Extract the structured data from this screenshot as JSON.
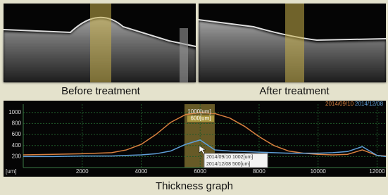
{
  "panels": [
    {
      "caption": "Before treatment"
    },
    {
      "caption": "After treatment"
    }
  ],
  "chart_data": {
    "type": "line",
    "title": "Thickness graph",
    "y_label": "[um]",
    "x": [
      0,
      1000,
      2000,
      3000,
      3500,
      4000,
      4500,
      5000,
      5500,
      6000,
      6500,
      7000,
      7500,
      8000,
      8500,
      9000,
      9500,
      10000,
      10500,
      11000,
      11500,
      12000,
      12300
    ],
    "series": [
      {
        "name": "2014/09/10",
        "color": "#d9803f",
        "values": [
          230,
          240,
          250,
          270,
          320,
          420,
          600,
          820,
          960,
          1000,
          980,
          900,
          750,
          560,
          400,
          300,
          260,
          240,
          230,
          240,
          320,
          220,
          210
        ]
      },
      {
        "name": "2014/12/08",
        "color": "#5f9fd8",
        "values": [
          200,
          200,
          210,
          210,
          220,
          230,
          250,
          300,
          420,
          500,
          320,
          300,
          290,
          280,
          270,
          260,
          260,
          260,
          270,
          290,
          380,
          220,
          200
        ]
      }
    ],
    "annotations": [
      "1000[um]",
      "600[um]",
      "2014/09/10 1002[um]",
      "2014/12/08 500[um]"
    ],
    "xlim": [
      0,
      12300
    ],
    "xticks": [
      2000,
      4000,
      6000,
      8000,
      10000,
      12000
    ],
    "ylim": [
      0,
      1150
    ],
    "yticks": [
      200,
      400,
      600,
      800,
      1000
    ],
    "grid": true
  }
}
